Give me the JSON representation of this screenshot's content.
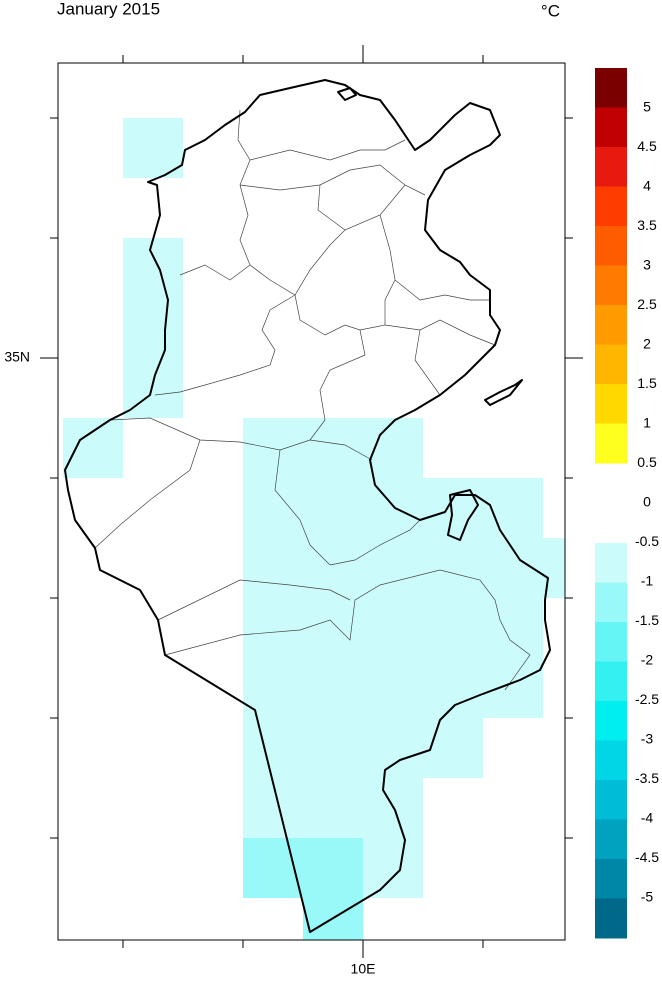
{
  "title": "January 2015",
  "unit": "°C",
  "lat_label": "35N",
  "lon_label": "10E",
  "colorbar": {
    "labels": [
      5,
      4.5,
      4,
      3.5,
      3,
      2.5,
      2,
      1.5,
      1,
      0.5,
      0,
      -0.5,
      -1,
      -1.5,
      -2,
      -2.5,
      -3,
      -3.5,
      -4,
      -4.5,
      -5
    ],
    "positive_colors": [
      "#7a0000",
      "#c00000",
      "#e81a0f",
      "#ff3c00",
      "#ff5c00",
      "#ff7b00",
      "#ff9a00",
      "#ffb600",
      "#ffd800",
      "#ffff1e"
    ],
    "negative_colors": [
      "#ccfbfb",
      "#99f8f8",
      "#66f5f5",
      "#33f1f1",
      "#00eeee",
      "#00d6e6",
      "#00bcd6",
      "#00a2c0",
      "#0086a6",
      "#006888"
    ]
  }
}
